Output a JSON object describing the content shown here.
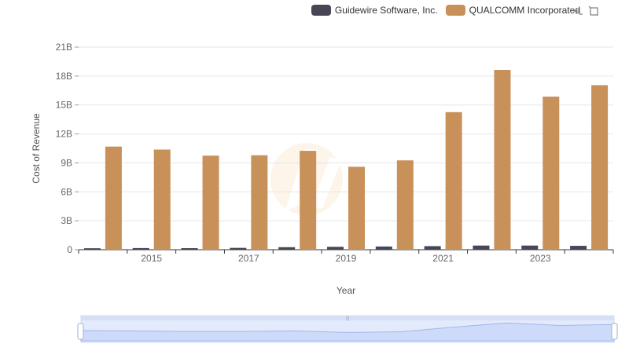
{
  "legend": [
    {
      "name": "Guidewire Software, Inc.",
      "color": "#464655"
    },
    {
      "name": "QUALCOMM Incorporated",
      "color": "#c9915a"
    }
  ],
  "toolbox": {
    "icons": [
      "zoom-icon",
      "zoom-reset-icon"
    ]
  },
  "chart_data": {
    "type": "bar",
    "xlabel": "Year",
    "ylabel": "Cost of Revenue",
    "ylim": [
      0,
      21000000000
    ],
    "yticks": [
      "0",
      "3B",
      "6B",
      "9B",
      "12B",
      "15B",
      "18B",
      "21B"
    ],
    "xticks": [
      "2015",
      "2017",
      "2019",
      "2021",
      "2023"
    ],
    "categories": [
      "2014",
      "2015",
      "2016",
      "2017",
      "2018",
      "2019",
      "2020",
      "2021",
      "2022",
      "2023",
      "2024"
    ],
    "series": [
      {
        "name": "Guidewire Software, Inc.",
        "color": "#464655",
        "values": [
          150000000,
          170000000,
          160000000,
          190000000,
          260000000,
          300000000,
          330000000,
          370000000,
          430000000,
          430000000,
          400000000
        ]
      },
      {
        "name": "QUALCOMM Incorporated",
        "color": "#c9915a",
        "values": [
          10690000000,
          10380000000,
          9750000000,
          9790000000,
          10250000000,
          8600000000,
          9260000000,
          14260000000,
          18640000000,
          15870000000,
          17060000000
        ]
      }
    ],
    "grid": true,
    "legend_position": "top-right",
    "datazoom": true
  }
}
